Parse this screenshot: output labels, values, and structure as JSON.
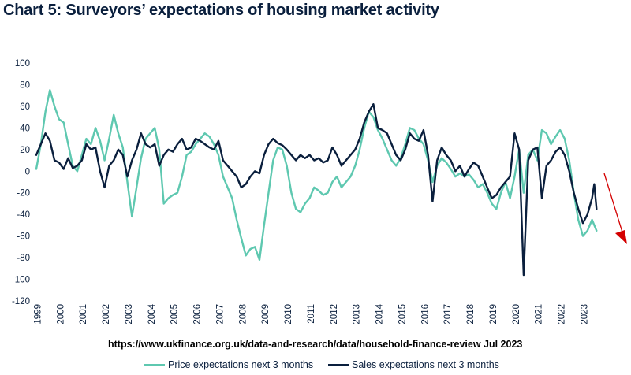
{
  "chart_data": {
    "type": "line",
    "title": "Chart 5: Surveyors’ expectations of housing market activity",
    "xlabel": "",
    "ylabel": "",
    "ylim": [
      -120,
      100
    ],
    "yticks": [
      "100",
      "80",
      "60",
      "40",
      "20",
      "0",
      "-20",
      "-40",
      "-60",
      "-80",
      "-100",
      "-120"
    ],
    "xticks": [
      "1999",
      "2000",
      "2001",
      "2002",
      "2003",
      "2004",
      "2005",
      "2006",
      "2007",
      "2008",
      "2009",
      "2010",
      "2011",
      "2012",
      "2013",
      "2014",
      "2015",
      "2016",
      "2017",
      "2018",
      "2019",
      "2020",
      "2021",
      "2022",
      "2023"
    ],
    "source": "https://www.ukfinance.org.uk/data-and-research/data/household-finance-review Jul 2023",
    "series": [
      {
        "name": "Price expectations next 3 months",
        "color": "#5ec8b0",
        "points": [
          [
            1999.0,
            2
          ],
          [
            1999.2,
            25
          ],
          [
            1999.4,
            55
          ],
          [
            1999.6,
            75
          ],
          [
            1999.8,
            60
          ],
          [
            2000.0,
            48
          ],
          [
            2000.2,
            45
          ],
          [
            2000.4,
            25
          ],
          [
            2000.6,
            5
          ],
          [
            2000.8,
            0
          ],
          [
            2001.0,
            15
          ],
          [
            2001.2,
            30
          ],
          [
            2001.4,
            25
          ],
          [
            2001.6,
            40
          ],
          [
            2001.8,
            28
          ],
          [
            2002.0,
            10
          ],
          [
            2002.2,
            30
          ],
          [
            2002.4,
            52
          ],
          [
            2002.6,
            35
          ],
          [
            2002.8,
            22
          ],
          [
            2003.0,
            -10
          ],
          [
            2003.2,
            -42
          ],
          [
            2003.4,
            -15
          ],
          [
            2003.6,
            12
          ],
          [
            2003.8,
            30
          ],
          [
            2004.0,
            35
          ],
          [
            2004.2,
            40
          ],
          [
            2004.4,
            20
          ],
          [
            2004.6,
            -30
          ],
          [
            2004.8,
            -25
          ],
          [
            2005.0,
            -22
          ],
          [
            2005.2,
            -20
          ],
          [
            2005.4,
            -5
          ],
          [
            2005.6,
            15
          ],
          [
            2005.8,
            18
          ],
          [
            2006.0,
            25
          ],
          [
            2006.2,
            30
          ],
          [
            2006.4,
            35
          ],
          [
            2006.6,
            32
          ],
          [
            2006.8,
            25
          ],
          [
            2007.0,
            15
          ],
          [
            2007.2,
            -5
          ],
          [
            2007.4,
            -15
          ],
          [
            2007.6,
            -25
          ],
          [
            2007.8,
            -45
          ],
          [
            2008.0,
            -62
          ],
          [
            2008.2,
            -78
          ],
          [
            2008.4,
            -72
          ],
          [
            2008.6,
            -70
          ],
          [
            2008.8,
            -82
          ],
          [
            2009.0,
            -50
          ],
          [
            2009.2,
            -20
          ],
          [
            2009.4,
            10
          ],
          [
            2009.6,
            22
          ],
          [
            2009.8,
            20
          ],
          [
            2010.0,
            5
          ],
          [
            2010.2,
            -20
          ],
          [
            2010.4,
            -35
          ],
          [
            2010.6,
            -38
          ],
          [
            2010.8,
            -30
          ],
          [
            2011.0,
            -25
          ],
          [
            2011.2,
            -15
          ],
          [
            2011.4,
            -18
          ],
          [
            2011.6,
            -22
          ],
          [
            2011.8,
            -20
          ],
          [
            2012.0,
            -10
          ],
          [
            2012.2,
            -5
          ],
          [
            2012.4,
            -15
          ],
          [
            2012.6,
            -10
          ],
          [
            2012.8,
            -5
          ],
          [
            2013.0,
            5
          ],
          [
            2013.2,
            20
          ],
          [
            2013.4,
            40
          ],
          [
            2013.6,
            55
          ],
          [
            2013.8,
            50
          ],
          [
            2014.0,
            38
          ],
          [
            2014.2,
            30
          ],
          [
            2014.4,
            20
          ],
          [
            2014.6,
            10
          ],
          [
            2014.8,
            5
          ],
          [
            2015.0,
            12
          ],
          [
            2015.2,
            25
          ],
          [
            2015.4,
            40
          ],
          [
            2015.6,
            38
          ],
          [
            2015.8,
            30
          ],
          [
            2016.0,
            25
          ],
          [
            2016.2,
            10
          ],
          [
            2016.4,
            -10
          ],
          [
            2016.6,
            5
          ],
          [
            2016.8,
            12
          ],
          [
            2017.0,
            8
          ],
          [
            2017.2,
            2
          ],
          [
            2017.4,
            -5
          ],
          [
            2017.6,
            -2
          ],
          [
            2017.8,
            -5
          ],
          [
            2018.0,
            -3
          ],
          [
            2018.2,
            -8
          ],
          [
            2018.4,
            -15
          ],
          [
            2018.6,
            -12
          ],
          [
            2018.8,
            -20
          ],
          [
            2019.0,
            -30
          ],
          [
            2019.2,
            -35
          ],
          [
            2019.4,
            -20
          ],
          [
            2019.6,
            -10
          ],
          [
            2019.8,
            -25
          ],
          [
            2020.0,
            -5
          ],
          [
            2020.2,
            20
          ],
          [
            2020.4,
            -20
          ],
          [
            2020.6,
            15
          ],
          [
            2020.8,
            20
          ],
          [
            2021.0,
            10
          ],
          [
            2021.2,
            38
          ],
          [
            2021.4,
            35
          ],
          [
            2021.6,
            25
          ],
          [
            2021.8,
            32
          ],
          [
            2022.0,
            38
          ],
          [
            2022.2,
            30
          ],
          [
            2022.4,
            10
          ],
          [
            2022.6,
            -20
          ],
          [
            2022.8,
            -45
          ],
          [
            2023.0,
            -60
          ],
          [
            2023.2,
            -55
          ],
          [
            2023.4,
            -45
          ],
          [
            2023.6,
            -55
          ]
        ]
      },
      {
        "name": "Sales expectations next 3 months",
        "color": "#0a1f3d",
        "points": [
          [
            1999.0,
            15
          ],
          [
            1999.2,
            25
          ],
          [
            1999.4,
            35
          ],
          [
            1999.6,
            28
          ],
          [
            1999.8,
            10
          ],
          [
            2000.0,
            8
          ],
          [
            2000.2,
            2
          ],
          [
            2000.4,
            12
          ],
          [
            2000.6,
            3
          ],
          [
            2000.8,
            5
          ],
          [
            2001.0,
            10
          ],
          [
            2001.2,
            25
          ],
          [
            2001.4,
            20
          ],
          [
            2001.6,
            22
          ],
          [
            2001.8,
            0
          ],
          [
            2002.0,
            -15
          ],
          [
            2002.2,
            5
          ],
          [
            2002.4,
            10
          ],
          [
            2002.6,
            20
          ],
          [
            2002.8,
            15
          ],
          [
            2003.0,
            -5
          ],
          [
            2003.2,
            10
          ],
          [
            2003.4,
            20
          ],
          [
            2003.6,
            35
          ],
          [
            2003.8,
            25
          ],
          [
            2004.0,
            22
          ],
          [
            2004.2,
            25
          ],
          [
            2004.4,
            5
          ],
          [
            2004.6,
            15
          ],
          [
            2004.8,
            20
          ],
          [
            2005.0,
            18
          ],
          [
            2005.2,
            25
          ],
          [
            2005.4,
            30
          ],
          [
            2005.6,
            20
          ],
          [
            2005.8,
            22
          ],
          [
            2006.0,
            30
          ],
          [
            2006.2,
            28
          ],
          [
            2006.4,
            25
          ],
          [
            2006.6,
            22
          ],
          [
            2006.8,
            20
          ],
          [
            2007.0,
            28
          ],
          [
            2007.2,
            10
          ],
          [
            2007.4,
            5
          ],
          [
            2007.6,
            0
          ],
          [
            2007.8,
            -5
          ],
          [
            2008.0,
            -15
          ],
          [
            2008.2,
            -12
          ],
          [
            2008.4,
            -5
          ],
          [
            2008.6,
            0
          ],
          [
            2008.8,
            -2
          ],
          [
            2009.0,
            15
          ],
          [
            2009.2,
            25
          ],
          [
            2009.4,
            30
          ],
          [
            2009.6,
            26
          ],
          [
            2009.8,
            24
          ],
          [
            2010.0,
            20
          ],
          [
            2010.2,
            15
          ],
          [
            2010.4,
            10
          ],
          [
            2010.6,
            15
          ],
          [
            2010.8,
            12
          ],
          [
            2011.0,
            15
          ],
          [
            2011.2,
            10
          ],
          [
            2011.4,
            12
          ],
          [
            2011.6,
            8
          ],
          [
            2011.8,
            10
          ],
          [
            2012.0,
            22
          ],
          [
            2012.2,
            15
          ],
          [
            2012.4,
            5
          ],
          [
            2012.6,
            10
          ],
          [
            2012.8,
            15
          ],
          [
            2013.0,
            20
          ],
          [
            2013.2,
            30
          ],
          [
            2013.4,
            45
          ],
          [
            2013.6,
            55
          ],
          [
            2013.8,
            62
          ],
          [
            2014.0,
            40
          ],
          [
            2014.2,
            38
          ],
          [
            2014.4,
            35
          ],
          [
            2014.6,
            25
          ],
          [
            2014.8,
            15
          ],
          [
            2015.0,
            10
          ],
          [
            2015.2,
            20
          ],
          [
            2015.4,
            35
          ],
          [
            2015.6,
            30
          ],
          [
            2015.8,
            28
          ],
          [
            2016.0,
            38
          ],
          [
            2016.2,
            15
          ],
          [
            2016.4,
            -28
          ],
          [
            2016.6,
            10
          ],
          [
            2016.8,
            22
          ],
          [
            2017.0,
            15
          ],
          [
            2017.2,
            10
          ],
          [
            2017.4,
            0
          ],
          [
            2017.6,
            5
          ],
          [
            2017.8,
            -5
          ],
          [
            2018.0,
            2
          ],
          [
            2018.2,
            8
          ],
          [
            2018.4,
            5
          ],
          [
            2018.6,
            -5
          ],
          [
            2018.8,
            -15
          ],
          [
            2019.0,
            -25
          ],
          [
            2019.2,
            -22
          ],
          [
            2019.4,
            -15
          ],
          [
            2019.6,
            -10
          ],
          [
            2019.8,
            -5
          ],
          [
            2020.0,
            35
          ],
          [
            2020.2,
            20
          ],
          [
            2020.4,
            -96
          ],
          [
            2020.6,
            10
          ],
          [
            2020.8,
            20
          ],
          [
            2021.0,
            22
          ],
          [
            2021.2,
            -25
          ],
          [
            2021.4,
            5
          ],
          [
            2021.6,
            10
          ],
          [
            2021.8,
            18
          ],
          [
            2022.0,
            22
          ],
          [
            2022.2,
            15
          ],
          [
            2022.4,
            0
          ],
          [
            2022.6,
            -20
          ],
          [
            2022.8,
            -35
          ],
          [
            2023.0,
            -48
          ],
          [
            2023.2,
            -40
          ],
          [
            2023.4,
            -25
          ],
          [
            2023.5,
            -12
          ],
          [
            2023.6,
            -35
          ]
        ]
      }
    ],
    "arrow_color": "#d40000"
  }
}
